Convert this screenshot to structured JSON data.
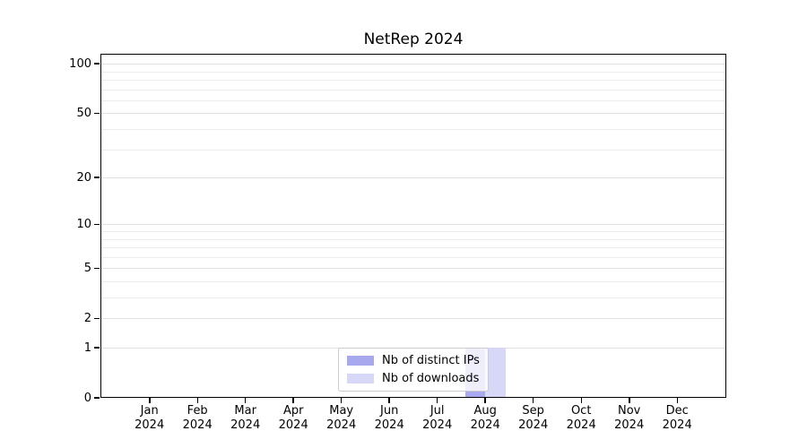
{
  "title": "NetRep 2024",
  "chart_data": {
    "type": "bar",
    "title": "NetRep 2024",
    "categories": [
      "Jan 2024",
      "Feb 2024",
      "Mar 2024",
      "Apr 2024",
      "May 2024",
      "Jun 2024",
      "Jul 2024",
      "Aug 2024",
      "Sep 2024",
      "Oct 2024",
      "Nov 2024",
      "Dec 2024"
    ],
    "series": [
      {
        "name": "Nb of distinct IPs",
        "key": "distinct-ips",
        "color": "#a8a8ee",
        "values": [
          0,
          0,
          0,
          0,
          0,
          0,
          0,
          1,
          0,
          0,
          0,
          0
        ]
      },
      {
        "name": "Nb of downloads",
        "key": "downloads",
        "color": "#d7d7f7",
        "values": [
          0,
          0,
          0,
          0,
          0,
          0,
          0,
          1,
          0,
          0,
          0,
          0
        ]
      }
    ],
    "xlabel": "",
    "ylabel": "",
    "yscale": "log1p",
    "ylim": [
      0,
      115
    ],
    "y_ticks": [
      0,
      1,
      2,
      5,
      10,
      20,
      50,
      100
    ],
    "y_gridlines": [
      1,
      2,
      3,
      4,
      5,
      6,
      7,
      8,
      9,
      10,
      20,
      30,
      40,
      50,
      60,
      70,
      80,
      90,
      100
    ],
    "grid": "on",
    "legend": {
      "position": "lower center",
      "items": [
        "Nb of distinct IPs",
        "Nb of downloads"
      ]
    }
  }
}
